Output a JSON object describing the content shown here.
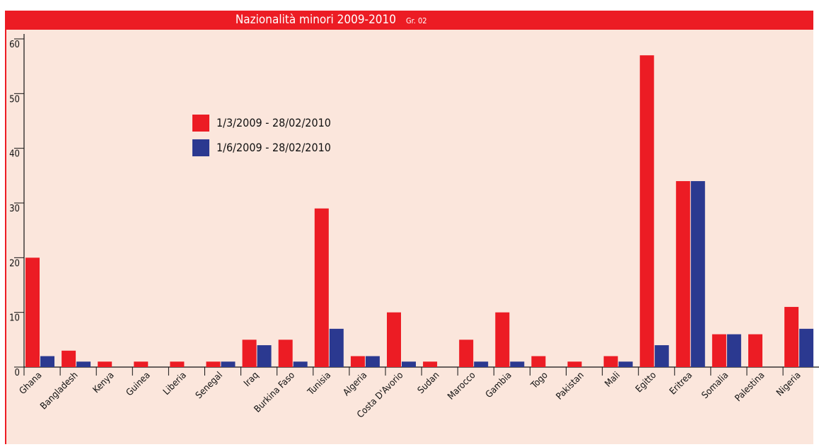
{
  "chart_data": {
    "type": "bar",
    "title": "Nazionalità minori 2009-2010",
    "subtitle": "Gr. 02",
    "categories": [
      "Ghana",
      "Bangladesh",
      "Kenya",
      "Guinea",
      "Liberia",
      "Senegal",
      "Iraq",
      "Burkina Faso",
      "Tunisia",
      "Algeria",
      "Costa D'Avorio",
      "Sudan",
      "Marocco",
      "Gambia",
      "Togo",
      "Pakistan",
      "Mali",
      "Egitto",
      "Eritrea",
      "Somalia",
      "Palestina",
      "Nigeria"
    ],
    "series": [
      {
        "name": "1/3/2009  -  28/02/2010",
        "color": "#ec1c24",
        "values": [
          20,
          3,
          1,
          1,
          1,
          1,
          5,
          5,
          29,
          2,
          10,
          1,
          5,
          10,
          2,
          1,
          2,
          57,
          34,
          6,
          6,
          11
        ]
      },
      {
        "name": "1/6/2009  -  28/02/2010",
        "color": "#2b3990",
        "values": [
          2,
          1,
          0,
          0,
          0,
          1,
          4,
          1,
          7,
          2,
          1,
          0,
          1,
          1,
          0,
          0,
          1,
          4,
          34,
          6,
          0,
          7
        ]
      }
    ],
    "ylim": [
      0,
      60
    ],
    "yticks": [
      0,
      10,
      20,
      30,
      40,
      50,
      60
    ]
  }
}
